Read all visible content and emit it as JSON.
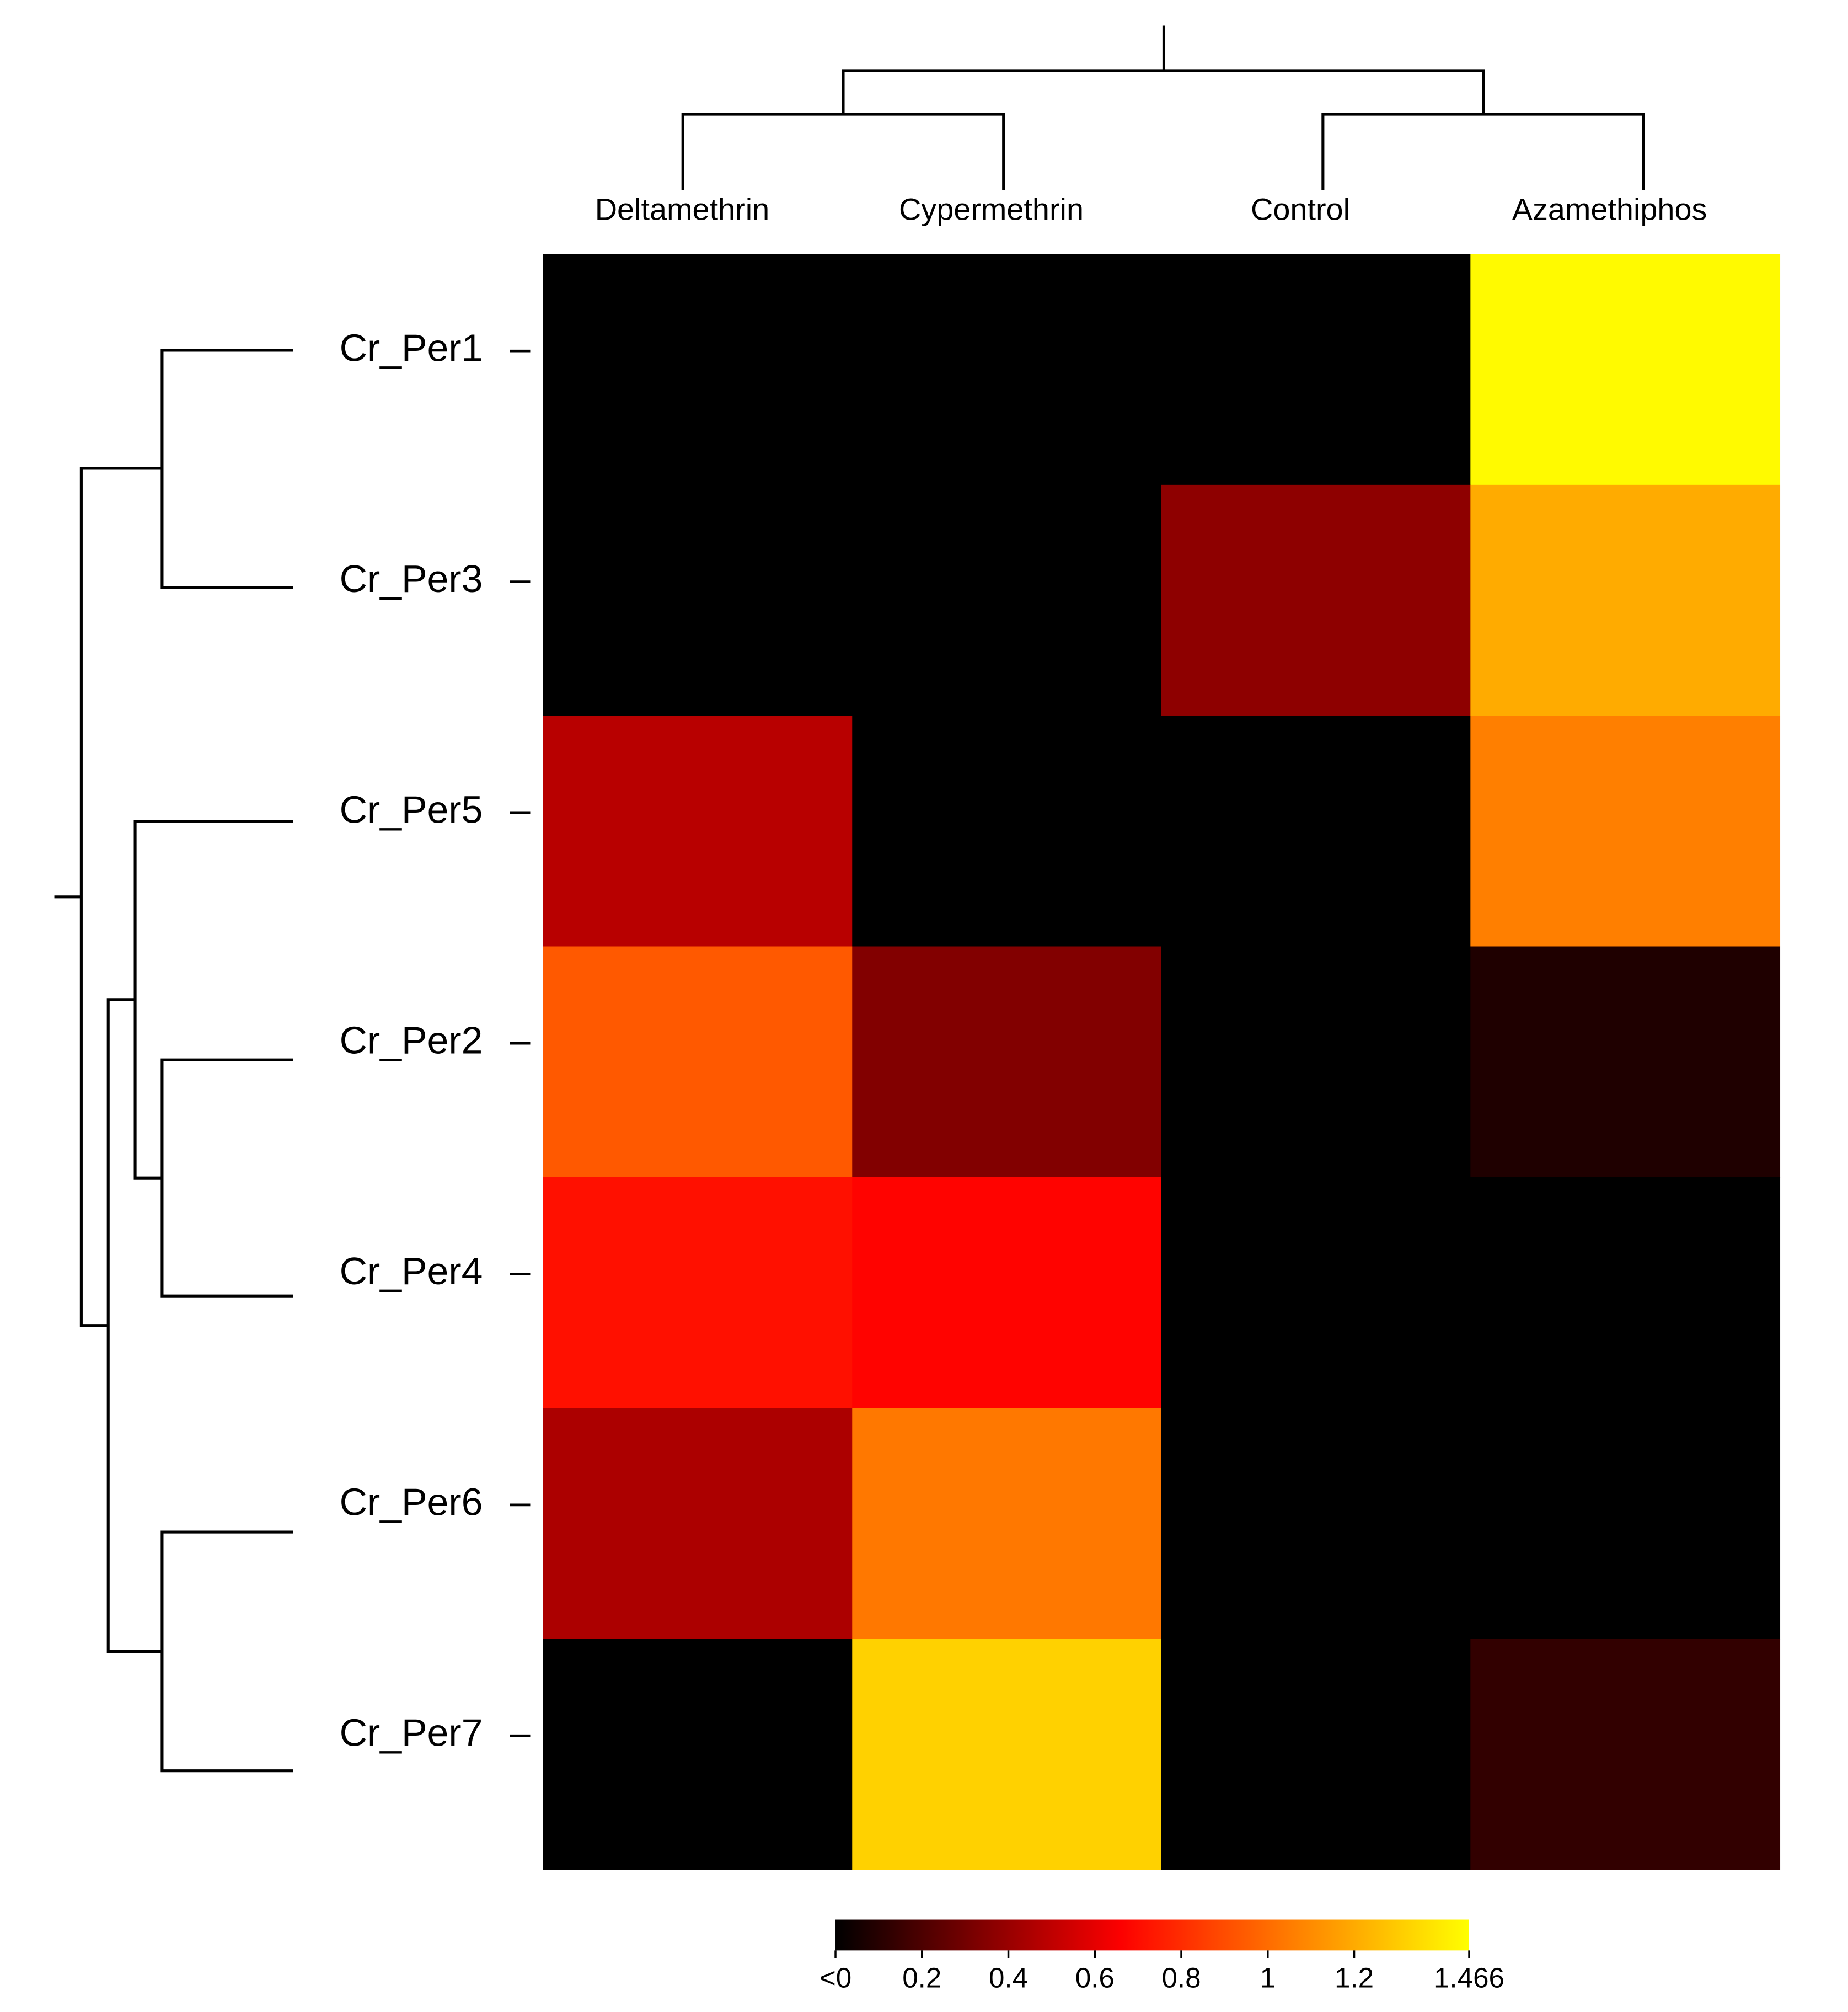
{
  "chart_data": {
    "type": "heatmap",
    "x_categories": [
      "Deltamethrin",
      "Cypermethrin",
      "Control",
      "Azamethiphos"
    ],
    "y_categories": [
      "Cr_Per1",
      "Cr_Per3",
      "Cr_Per5",
      "Cr_Per2",
      "Cr_Per4",
      "Cr_Per6",
      "Cr_Per7"
    ],
    "values": [
      [
        0,
        0,
        0,
        1.45
      ],
      [
        0,
        0,
        0.37,
        1.2
      ],
      [
        0.48,
        0,
        0,
        1.06
      ],
      [
        0.94,
        0.34,
        0,
        0.08
      ],
      [
        0.71,
        0.67,
        0,
        0
      ],
      [
        0.45,
        1.04,
        0,
        0
      ],
      [
        0,
        1.32,
        0,
        0.13
      ]
    ],
    "zlim": [
      0,
      1.466
    ],
    "zticks": [
      {
        "value": 0,
        "label": "<0"
      },
      0.2,
      0.4,
      0.6,
      0.8,
      1,
      1.2,
      1.466
    ]
  }
}
